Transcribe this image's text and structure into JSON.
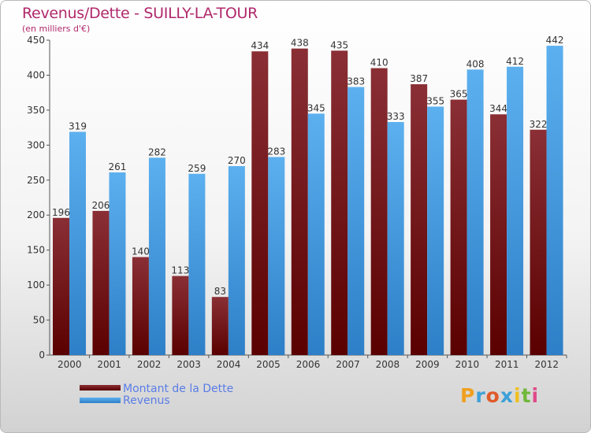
{
  "header": {
    "title": "Revenus/Dette - SUILLY-LA-TOUR",
    "subtitle": "(en milliers d'€)"
  },
  "legend": {
    "items": [
      {
        "label": "Montant de la Dette",
        "color": "#7a1e24"
      },
      {
        "label": "Revenus",
        "color": "#4aa3e4"
      }
    ]
  },
  "logo": {
    "letters": [
      "P",
      "r",
      "o",
      "x",
      "i",
      "t",
      "i"
    ],
    "colors": [
      "#f0a020",
      "#40a0d8",
      "#e05a2a",
      "#3da0d8",
      "#f0c020",
      "#70b83a",
      "#e04a8a"
    ]
  },
  "chart_data": {
    "type": "bar",
    "categories": [
      "2000",
      "2001",
      "2002",
      "2003",
      "2004",
      "2005",
      "2006",
      "2007",
      "2008",
      "2009",
      "2010",
      "2011",
      "2012"
    ],
    "series": [
      {
        "name": "Montant de la Dette",
        "values": [
          196,
          206,
          140,
          113,
          83,
          434,
          438,
          435,
          410,
          387,
          365,
          344,
          322
        ]
      },
      {
        "name": "Revenus",
        "values": [
          319,
          261,
          282,
          259,
          270,
          283,
          345,
          383,
          333,
          355,
          408,
          412,
          442
        ]
      }
    ],
    "title": "Revenus/Dette - SUILLY-LA-TOUR",
    "subtitle": "(en milliers d'€)",
    "ylim": [
      0,
      450
    ],
    "yticks": [
      0,
      50,
      100,
      150,
      200,
      250,
      300,
      350,
      400,
      450
    ],
    "grid": false,
    "legend_position": "bottom-left"
  }
}
